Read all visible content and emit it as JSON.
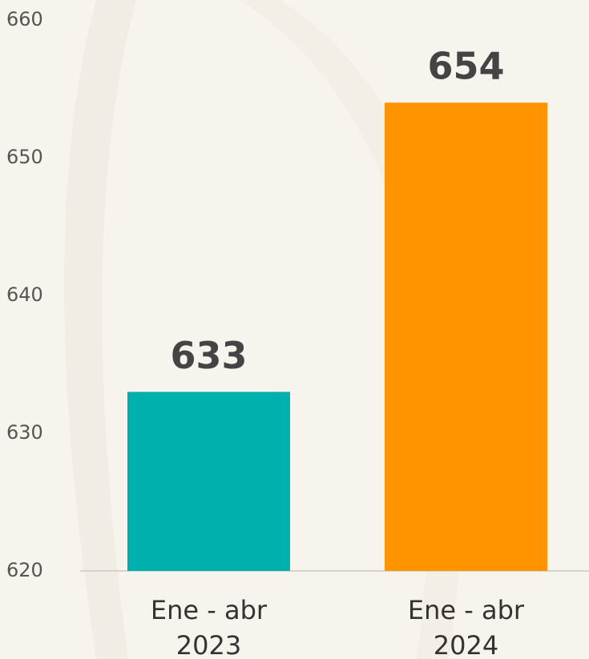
{
  "chart_data": {
    "type": "bar",
    "categories": [
      "Ene - abr 2023",
      "Ene - abr 2024"
    ],
    "values": [
      633,
      654
    ],
    "colors": [
      "#00b0ad",
      "#ff9400"
    ],
    "ylim": [
      620,
      660
    ],
    "yticks": [
      620,
      630,
      640,
      650,
      660
    ],
    "grid": false
  }
}
